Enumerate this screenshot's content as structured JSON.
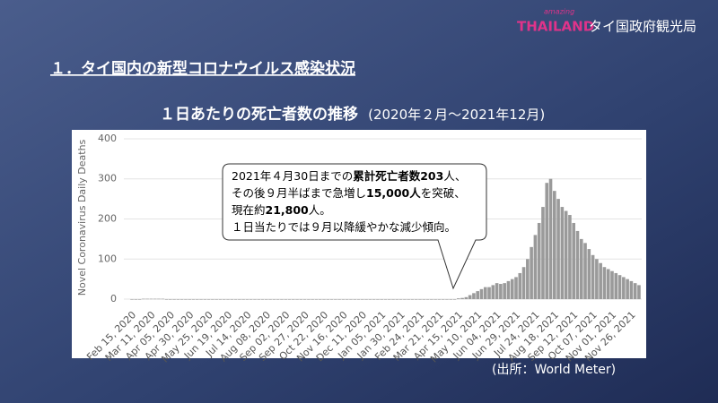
{
  "logo": {
    "tagline": "amazing",
    "brand": "THAILAND",
    "agency": "タイ国政府観光局"
  },
  "heading": "１．タイ国内の新型コロナウイルス感染状況",
  "source": "(出所：World Meter)",
  "chart_data": {
    "type": "bar",
    "title": "１日あたりの死亡者数の推移",
    "subtitle": "(2020年２月～2021年12月)",
    "y_label": "Novel Coronavirus Daily Deaths",
    "color": "#9a9a9a",
    "ylim": [
      -20,
      420
    ],
    "yticks": [
      0,
      100,
      200,
      300,
      400
    ],
    "grid": true,
    "categories": [
      "Feb 15, 2020",
      null,
      null,
      null,
      null,
      "Mar 11, 2020",
      null,
      null,
      null,
      null,
      "Apr 05, 2020",
      null,
      null,
      null,
      null,
      "Apr 30, 2020",
      null,
      null,
      null,
      null,
      "May 25, 2020",
      null,
      null,
      null,
      null,
      "Jun 19, 2020",
      null,
      null,
      null,
      null,
      "Jul 14, 2020",
      null,
      null,
      null,
      null,
      "Aug 08, 2020",
      null,
      null,
      null,
      null,
      "Sep 02, 2020",
      null,
      null,
      null,
      null,
      "Sep 27, 2020",
      null,
      null,
      null,
      null,
      "Oct 22, 2020",
      null,
      null,
      null,
      null,
      "Nov 16, 2020",
      null,
      null,
      null,
      null,
      "Dec 11, 2020",
      null,
      null,
      null,
      null,
      "Jan 05, 2021",
      null,
      null,
      null,
      null,
      "Jan 30, 2021",
      null,
      null,
      null,
      null,
      "Feb 24, 2021",
      null,
      null,
      null,
      null,
      "Mar 21, 2021",
      null,
      null,
      null,
      null,
      "Apr 15, 2021",
      null,
      null,
      null,
      null,
      "May 10, 2021",
      null,
      null,
      null,
      null,
      "Jun 04, 2021",
      null,
      null,
      null,
      null,
      "Jun 29, 2021",
      null,
      null,
      null,
      null,
      "Jul 24, 2021",
      null,
      null,
      null,
      null,
      "Aug 18, 2021",
      null,
      null,
      null,
      null,
      "Sep 12, 2021",
      null,
      null,
      null,
      null,
      "Oct 07, 2021",
      null,
      null,
      null,
      null,
      "Nov 01, 2021",
      null,
      null,
      null,
      null,
      "Nov 26, 2021",
      null,
      null
    ],
    "values": [
      0,
      0,
      0,
      1,
      1,
      1,
      1,
      1,
      1,
      0,
      0,
      0,
      0,
      0,
      0,
      0,
      0,
      0,
      0,
      0,
      0,
      0,
      0,
      0,
      0,
      0,
      0,
      0,
      0,
      0,
      0,
      0,
      0,
      0,
      0,
      0,
      0,
      0,
      0,
      0,
      0,
      0,
      0,
      0,
      0,
      0,
      0,
      0,
      0,
      0,
      0,
      0,
      0,
      0,
      0,
      0,
      0,
      0,
      0,
      0,
      0,
      0,
      0,
      0,
      0,
      0,
      0,
      0,
      0,
      0,
      0,
      0,
      0,
      0,
      0,
      0,
      0,
      0,
      0,
      0,
      0,
      0,
      0,
      0,
      0,
      2,
      3,
      5,
      10,
      15,
      20,
      25,
      30,
      30,
      35,
      40,
      38,
      40,
      45,
      50,
      55,
      65,
      80,
      100,
      130,
      160,
      190,
      230,
      290,
      300,
      270,
      250,
      230,
      220,
      210,
      190,
      170,
      150,
      140,
      125,
      110,
      100,
      90,
      80,
      75,
      70,
      65,
      60,
      55,
      50,
      45,
      40,
      35
    ],
    "annotation": [
      [
        {
          "text": "2021年４月30日までの",
          "bold": false
        },
        {
          "text": "累計死亡者数203",
          "bold": true
        },
        {
          "text": "人、",
          "bold": false
        }
      ],
      [
        {
          "text": "その後９月半ばまで急増し",
          "bold": false
        },
        {
          "text": "15,000人",
          "bold": true
        },
        {
          "text": "を突破、",
          "bold": false
        }
      ],
      [
        {
          "text": "現在約",
          "bold": false
        },
        {
          "text": "21,800",
          "bold": true
        },
        {
          "text": "人。",
          "bold": false
        }
      ],
      [
        {
          "text": "１日当たりでは９月以降緩やかな減少傾向。",
          "bold": false
        }
      ]
    ]
  }
}
